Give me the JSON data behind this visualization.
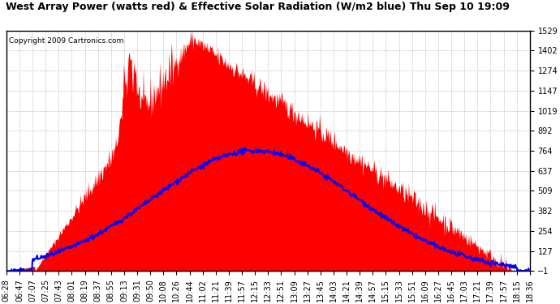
{
  "title": "West Array Power (watts red) & Effective Solar Radiation (W/m2 blue) Thu Sep 10 19:09",
  "copyright": "Copyright 2009 Cartronics.com",
  "ymin": -0.8,
  "ymax": 1529.4,
  "yticks": [
    -0.8,
    126.7,
    254.2,
    381.8,
    509.3,
    636.8,
    764.3,
    891.8,
    1019.3,
    1146.9,
    1274.4,
    1401.9,
    1529.4
  ],
  "background_color": "#ffffff",
  "grid_color": "#aaaaaa",
  "red_color": "#ff0000",
  "blue_color": "#0000ff",
  "x_labels": [
    "06:28",
    "06:47",
    "07:07",
    "07:25",
    "07:43",
    "08:01",
    "08:19",
    "08:37",
    "08:55",
    "09:13",
    "09:31",
    "09:50",
    "10:08",
    "10:26",
    "10:44",
    "11:02",
    "11:21",
    "11:39",
    "11:57",
    "12:15",
    "12:33",
    "12:51",
    "13:09",
    "13:27",
    "13:45",
    "14:03",
    "14:21",
    "14:39",
    "14:57",
    "15:15",
    "15:33",
    "15:51",
    "16:09",
    "16:27",
    "16:45",
    "17:03",
    "17:21",
    "17:39",
    "17:57",
    "18:15",
    "18:36"
  ],
  "title_fontsize": 9,
  "copyright_fontsize": 6.5,
  "tick_fontsize": 7,
  "blue_peak": 764.3,
  "red_peak": 1480.0
}
